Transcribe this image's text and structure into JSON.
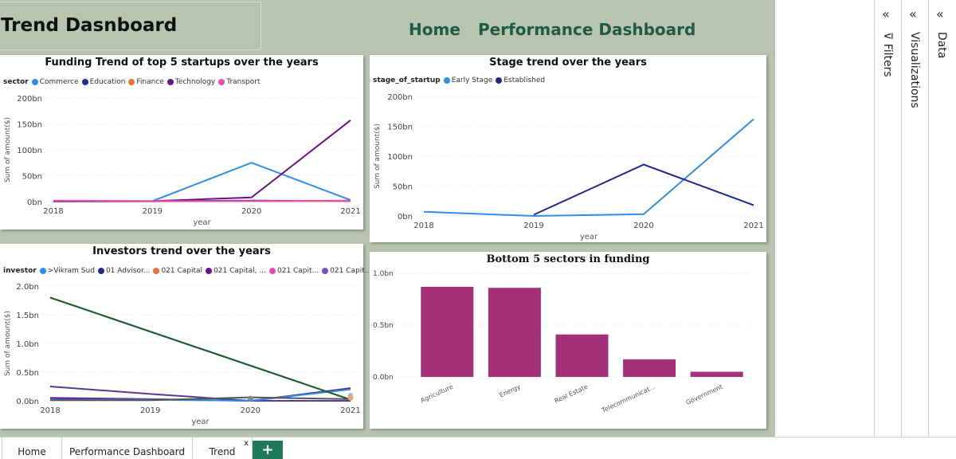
{
  "report": {
    "title": "Trend Dasnboard",
    "nav": [
      "Home",
      "Performance Dashboard"
    ]
  },
  "panes": {
    "filters": "Filters",
    "visualizations": "Visualizations",
    "data": "Data",
    "chevron": "«"
  },
  "tabs": [
    "Home",
    "Performance Dashboard",
    "Trend"
  ],
  "tab_close": "x",
  "tab_add": "+",
  "colors": {
    "Commerce": "#2f8ee6",
    "Education": "#1f2a8c",
    "Finance": "#e8743b",
    "Technology": "#6b1280",
    "Transport": "#e04fb3",
    "Early Stage": "#2f8ee6",
    "Established": "#1f2a8c",
    "bar": "#a4307a",
    "investor_green": "#1d5c2e"
  },
  "chart_data": [
    {
      "type": "line",
      "title": "Funding Trend of top 5 startups over the years",
      "legend_title": "sector",
      "x": [
        "2018",
        "2019",
        "2020",
        "2021"
      ],
      "xlabel": "year",
      "ylabel": "Sum of amount($)",
      "yticks": [
        "0bn",
        "50bn",
        "100bn",
        "150bn",
        "200bn"
      ],
      "ylim": [
        0,
        200
      ],
      "series": [
        {
          "name": "Commerce",
          "values": [
            1,
            1,
            75,
            3
          ]
        },
        {
          "name": "Education",
          "values": [
            0.5,
            0.5,
            2,
            1
          ]
        },
        {
          "name": "Finance",
          "values": [
            1,
            0.5,
            1,
            1
          ]
        },
        {
          "name": "Technology",
          "values": [
            0.5,
            1,
            8,
            157
          ]
        },
        {
          "name": "Transport",
          "values": [
            2,
            1,
            1,
            2
          ]
        }
      ]
    },
    {
      "type": "line",
      "title": "Stage trend over the years",
      "legend_title": "stage_of_startup",
      "x": [
        "2018",
        "2019",
        "2020",
        "2021"
      ],
      "xlabel": "year",
      "ylabel": "Sum of amount($)",
      "yticks": [
        "0bn",
        "50bn",
        "100bn",
        "150bn",
        "200bn"
      ],
      "ylim": [
        0,
        200
      ],
      "series": [
        {
          "name": "Early Stage",
          "values": [
            7,
            0,
            3,
            162
          ]
        },
        {
          "name": "Established",
          "values": [
            null,
            2,
            86,
            18
          ]
        }
      ]
    },
    {
      "type": "line",
      "title": "Investors trend over the years",
      "legend_title": "investor",
      "legend_items": [
        ">Vikram Sud",
        "01 Advisor...",
        "021 Capital",
        "021 Capital, ...",
        "021 Capit...",
        "021 Capit..."
      ],
      "legend_colors": [
        "#2f8ee6",
        "#1f2a8c",
        "#e8743b",
        "#6b1280",
        "#e04fb3",
        "#7a50c8"
      ],
      "x": [
        "2018",
        "2019",
        "2020",
        "2021"
      ],
      "xlabel": "year",
      "ylabel": "Sum of amount($)",
      "yticks": [
        "0.0bn",
        "0.5bn",
        "1.0bn",
        "1.5bn",
        "2.0bn"
      ],
      "ylim": [
        0,
        2
      ],
      "series": [
        {
          "color": "#1d5c2e",
          "values": [
            1.8,
            null,
            null,
            0.02
          ]
        },
        {
          "color": "#5a3a8c",
          "values": [
            0.25,
            0.12,
            0.0,
            0.0
          ]
        },
        {
          "color": "#6b1280",
          "values": [
            0.05,
            0.03,
            0.0,
            0.22
          ]
        },
        {
          "color": "#2f8ee6",
          "values": [
            0.02,
            0.02,
            0.0,
            0.2
          ]
        },
        {
          "color": "#555555",
          "values": [
            0.01,
            0.01,
            0.06,
            0.03
          ]
        }
      ]
    },
    {
      "type": "bar",
      "title": "Bottom 5 sectors in funding",
      "categories": [
        "Agriculture",
        "Energy",
        "Real Estate",
        "Telecommunicat...",
        "Government"
      ],
      "values": [
        0.87,
        0.86,
        0.41,
        0.17,
        0.05
      ],
      "yticks": [
        "0.0bn",
        "0.5bn",
        "1.0bn"
      ],
      "ylim": [
        0,
        1.0
      ]
    }
  ]
}
